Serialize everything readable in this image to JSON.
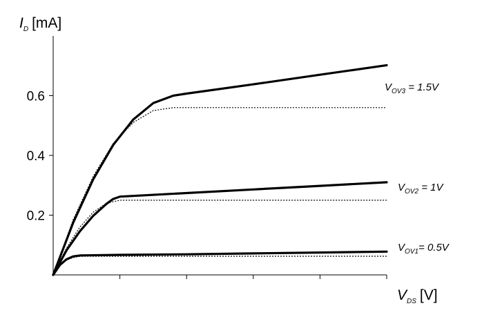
{
  "chart_data": {
    "type": "line",
    "title": "",
    "ylabel": {
      "main": "I",
      "sub": "D",
      "unit": "[mA]"
    },
    "xlabel": {
      "main": "V",
      "sub": "DS",
      "unit": "[V]"
    },
    "x_tick_count": 5,
    "xlim": [
      0,
      5
    ],
    "ylim": [
      0,
      0.8
    ],
    "y_ticks": [
      {
        "value": 0.2,
        "label": "0.2"
      },
      {
        "value": 0.4,
        "label": "0.4"
      },
      {
        "value": 0.6,
        "label": "0.6"
      }
    ],
    "series": [
      {
        "name": "VOV1",
        "style": "solid",
        "label": {
          "main": "V",
          "sub": "OV1",
          "rest": "= 0.5V"
        },
        "values": [
          [
            0,
            0
          ],
          [
            0.1,
            0.033
          ],
          [
            0.2,
            0.052
          ],
          [
            0.3,
            0.062
          ],
          [
            0.4,
            0.065
          ],
          [
            0.5,
            0.0655
          ],
          [
            1,
            0.067
          ],
          [
            2,
            0.069
          ],
          [
            3,
            0.072
          ],
          [
            4,
            0.075
          ],
          [
            5,
            0.078
          ]
        ]
      },
      {
        "name": "VOV1-ideal",
        "style": "dotted",
        "values": [
          [
            0,
            0
          ],
          [
            0.1,
            0.035
          ],
          [
            0.2,
            0.05
          ],
          [
            0.3,
            0.058
          ],
          [
            0.4,
            0.062
          ],
          [
            0.5,
            0.0625
          ],
          [
            5,
            0.0625
          ]
        ]
      },
      {
        "name": "VOV2",
        "style": "solid",
        "label": {
          "main": "V",
          "sub": "OV2",
          "rest": " = 1V"
        },
        "values": [
          [
            0,
            0
          ],
          [
            0.2,
            0.082
          ],
          [
            0.4,
            0.146
          ],
          [
            0.6,
            0.198
          ],
          [
            0.8,
            0.238
          ],
          [
            0.9,
            0.254
          ],
          [
            1,
            0.262
          ],
          [
            2,
            0.274
          ],
          [
            3,
            0.286
          ],
          [
            4,
            0.298
          ],
          [
            5,
            0.31
          ]
        ]
      },
      {
        "name": "VOV2-ideal",
        "style": "dotted",
        "values": [
          [
            0,
            0
          ],
          [
            0.2,
            0.09
          ],
          [
            0.4,
            0.16
          ],
          [
            0.6,
            0.21
          ],
          [
            0.8,
            0.24
          ],
          [
            1,
            0.25
          ],
          [
            5,
            0.25
          ]
        ]
      },
      {
        "name": "VOV3",
        "style": "solid",
        "label": {
          "main": "V",
          "sub": "OV3",
          "rest": " = 1.5V"
        },
        "values": [
          [
            0,
            0
          ],
          [
            0.3,
            0.175
          ],
          [
            0.6,
            0.32
          ],
          [
            0.9,
            0.435
          ],
          [
            1.2,
            0.52
          ],
          [
            1.5,
            0.575
          ],
          [
            1.8,
            0.6
          ],
          [
            2,
            0.607
          ],
          [
            3,
            0.638
          ],
          [
            4,
            0.67
          ],
          [
            5,
            0.702
          ]
        ]
      },
      {
        "name": "VOV3-ideal",
        "style": "dotted",
        "values": [
          [
            0,
            0
          ],
          [
            0.3,
            0.185
          ],
          [
            0.6,
            0.33
          ],
          [
            0.9,
            0.44
          ],
          [
            1.2,
            0.51
          ],
          [
            1.5,
            0.55
          ],
          [
            1.8,
            0.56
          ],
          [
            5,
            0.56
          ]
        ]
      }
    ]
  }
}
